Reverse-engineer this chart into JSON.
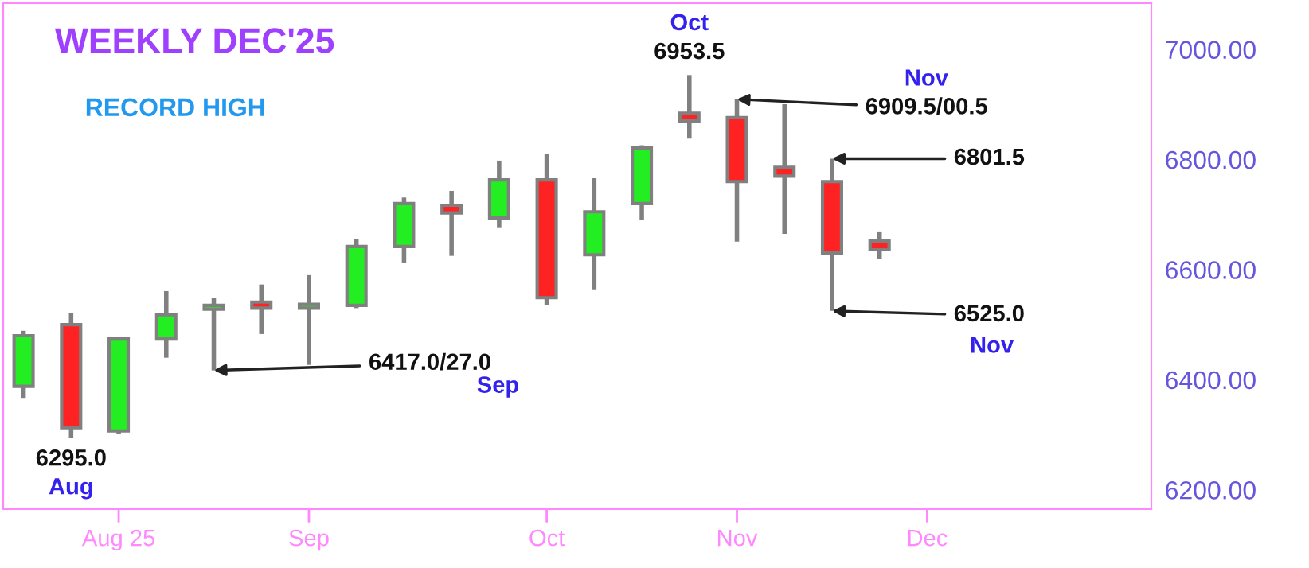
{
  "chart_data": {
    "type": "candlestick",
    "title": "WEEKLY DEC'25",
    "x": [
      "2025-07-21",
      "2025-07-28",
      "2025-08-04",
      "2025-08-11",
      "2025-08-18",
      "2025-08-25",
      "2025-09-01",
      "2025-09-08",
      "2025-09-15",
      "2025-09-22",
      "2025-09-29",
      "2025-10-06",
      "2025-10-13",
      "2025-10-20",
      "2025-10-27",
      "2025-11-03",
      "2025-11-10",
      "2025-11-17",
      "2025-11-24"
    ],
    "ohlc": [
      [
        6388,
        6489,
        6367,
        6480
      ],
      [
        6500,
        6521,
        6295,
        6313
      ],
      [
        6307,
        6477,
        6301,
        6474
      ],
      [
        6474,
        6561,
        6440,
        6518
      ],
      [
        6528,
        6549,
        6417,
        6535
      ],
      [
        6541,
        6573,
        6483,
        6530
      ],
      [
        6530,
        6590,
        6427,
        6537
      ],
      [
        6535,
        6656,
        6530,
        6642
      ],
      [
        6642,
        6731,
        6613,
        6720
      ],
      [
        6717,
        6743,
        6625,
        6703
      ],
      [
        6694,
        6798,
        6677,
        6763
      ],
      [
        6763,
        6810,
        6535,
        6549
      ],
      [
        6627,
        6766,
        6564,
        6705
      ],
      [
        6720,
        6826,
        6691,
        6821
      ],
      [
        6884,
        6953.5,
        6838,
        6870
      ],
      [
        6876,
        6909.5,
        6651,
        6760
      ],
      [
        6786,
        6900.5,
        6665,
        6770
      ],
      [
        6760,
        6801.5,
        6525,
        6630
      ],
      [
        6652,
        6668,
        6619,
        6636
      ]
    ],
    "colors": [
      "#22ee22",
      "#ff2222",
      "#22ee22",
      "#22ee22",
      "#22ee22",
      "#ff2222",
      "#22ee22",
      "#22ee22",
      "#22ee22",
      "#ff2222",
      "#22ee22",
      "#ff2222",
      "#22ee22",
      "#22ee22",
      "#ff2222",
      "#ff2222",
      "#ff2222",
      "#ff2222",
      "#ff2222"
    ],
    "xlim": [
      "2025-07-18",
      "2026-01-03"
    ],
    "xticks": [
      {
        "value": "2025-08-04",
        "label": "Aug 25"
      },
      {
        "value": "2025-09-01",
        "label": "Sep"
      },
      {
        "value": "2025-10-06",
        "label": "Oct"
      },
      {
        "value": "2025-11-03",
        "label": "Nov"
      },
      {
        "value": "2025-12-01",
        "label": "Dec"
      }
    ],
    "ylim": [
      6165,
      7084
    ],
    "yticks": [
      {
        "value": 6200,
        "label": "6200.00"
      },
      {
        "value": 6400,
        "label": "6400.00"
      },
      {
        "value": 6600,
        "label": "6600.00"
      },
      {
        "value": 6800,
        "label": "6800.00"
      },
      {
        "value": 7000,
        "label": "7000.00"
      }
    ],
    "grid": false,
    "annotations": [
      "RECORD HIGH",
      {
        "text": "6295.0",
        "x": "2025-07-28",
        "y": 6295
      },
      {
        "text": "Aug",
        "x": "2025-07-28",
        "y": 6295
      },
      {
        "text": "6417.0/27.0",
        "x": "2025-08-18",
        "y": 6417
      },
      "Sep",
      {
        "text": "Oct",
        "x": "2025-10-27",
        "y": 6953.5
      },
      {
        "text": "6953.5",
        "x": "2025-10-27",
        "y": 6953.5
      },
      "Nov",
      {
        "text": "6909.5/00.5",
        "x": "2025-11-03",
        "y": 6909.5
      },
      {
        "text": "6801.5",
        "x": "2025-11-17",
        "y": 6801.5
      },
      {
        "text": "6525.0",
        "x": "2025-11-17",
        "y": 6525
      },
      "Nov"
    ]
  }
}
